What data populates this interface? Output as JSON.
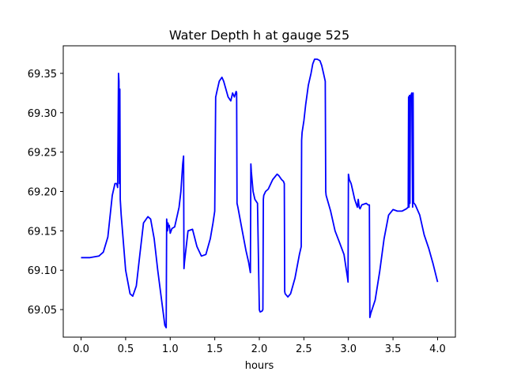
{
  "chart_data": {
    "type": "line",
    "title": "Water Depth h at gauge 525",
    "xlabel": "hours",
    "ylabel": "",
    "xlim": [
      -0.2,
      4.2
    ],
    "ylim": [
      69.015,
      69.385
    ],
    "xticks": [
      0.0,
      0.5,
      1.0,
      1.5,
      2.0,
      2.5,
      3.0,
      3.5,
      4.0
    ],
    "xtick_labels": [
      "0.0",
      "0.5",
      "1.0",
      "1.5",
      "2.0",
      "2.5",
      "3.0",
      "3.5",
      "4.0"
    ],
    "yticks": [
      69.05,
      69.1,
      69.15,
      69.2,
      69.25,
      69.3,
      69.35
    ],
    "ytick_labels": [
      "69.05",
      "69.10",
      "69.15",
      "69.20",
      "69.25",
      "69.30",
      "69.35"
    ],
    "grid": false,
    "color": "#0000ff",
    "series": [
      {
        "x": [
          0.0,
          0.1,
          0.2,
          0.25,
          0.3,
          0.35,
          0.38,
          0.4,
          0.41,
          0.42,
          0.425,
          0.43,
          0.435,
          0.44,
          0.45,
          0.5,
          0.55,
          0.58,
          0.62,
          0.66,
          0.7,
          0.75,
          0.78,
          0.82,
          0.86,
          0.9,
          0.94,
          0.955,
          0.96,
          0.97,
          0.975,
          0.98,
          0.99,
          1.0,
          1.02,
          1.05,
          1.08,
          1.1,
          1.12,
          1.14,
          1.15,
          1.155,
          1.16,
          1.2,
          1.25,
          1.3,
          1.35,
          1.4,
          1.45,
          1.48,
          1.5,
          1.51,
          1.515,
          1.52,
          1.55,
          1.58,
          1.6,
          1.65,
          1.68,
          1.7,
          1.72,
          1.74,
          1.745,
          1.75,
          1.76,
          1.8,
          1.85,
          1.88,
          1.9,
          1.905,
          1.91,
          1.93,
          1.95,
          1.98,
          2.0,
          2.005,
          2.01,
          2.03,
          2.04,
          2.045,
          2.05,
          2.07,
          2.1,
          2.15,
          2.2,
          2.22,
          2.25,
          2.27,
          2.28,
          2.285,
          2.29,
          2.32,
          2.35,
          2.4,
          2.45,
          2.47,
          2.475,
          2.48,
          2.5,
          2.52,
          2.55,
          2.58,
          2.6,
          2.62,
          2.65,
          2.68,
          2.7,
          2.72,
          2.74,
          2.745,
          2.75,
          2.8,
          2.85,
          2.9,
          2.95,
          2.99,
          2.995,
          3.0,
          3.01,
          3.03,
          3.05,
          3.07,
          3.1,
          3.11,
          3.12,
          3.13,
          3.15,
          3.2,
          3.22,
          3.235,
          3.24,
          3.25,
          3.3,
          3.35,
          3.4,
          3.45,
          3.5,
          3.55,
          3.6,
          3.65,
          3.67,
          3.675,
          3.68,
          3.685,
          3.69,
          3.695,
          3.7,
          3.71,
          3.72,
          3.725,
          3.73,
          3.75,
          3.8,
          3.85,
          3.9,
          3.95,
          4.0
        ],
        "y": [
          69.116,
          69.116,
          69.118,
          69.123,
          69.142,
          69.195,
          69.21,
          69.21,
          69.205,
          69.35,
          69.34,
          69.21,
          69.33,
          69.19,
          69.17,
          69.1,
          69.07,
          69.067,
          69.08,
          69.12,
          69.16,
          69.168,
          69.165,
          69.14,
          69.1,
          69.065,
          69.03,
          69.027,
          69.165,
          69.15,
          69.16,
          69.155,
          69.157,
          69.147,
          69.153,
          69.155,
          69.17,
          69.18,
          69.2,
          69.235,
          69.245,
          69.102,
          69.11,
          69.15,
          69.152,
          69.13,
          69.118,
          69.12,
          69.14,
          69.16,
          69.175,
          69.32,
          69.322,
          69.325,
          69.34,
          69.345,
          69.34,
          69.32,
          69.315,
          69.325,
          69.32,
          69.327,
          69.325,
          69.185,
          69.18,
          69.155,
          69.125,
          69.11,
          69.097,
          69.235,
          69.225,
          69.2,
          69.19,
          69.185,
          69.05,
          69.048,
          69.047,
          69.048,
          69.05,
          69.19,
          69.195,
          69.2,
          69.203,
          69.215,
          69.222,
          69.22,
          69.215,
          69.213,
          69.21,
          69.073,
          69.07,
          69.066,
          69.07,
          69.09,
          69.12,
          69.13,
          69.265,
          69.275,
          69.29,
          69.31,
          69.335,
          69.35,
          69.362,
          69.368,
          69.368,
          69.366,
          69.36,
          69.35,
          69.34,
          69.2,
          69.195,
          69.175,
          69.15,
          69.135,
          69.12,
          69.09,
          69.085,
          69.222,
          69.215,
          69.21,
          69.2,
          69.19,
          69.18,
          69.19,
          69.18,
          69.178,
          69.183,
          69.185,
          69.183,
          69.183,
          69.04,
          69.045,
          69.062,
          69.098,
          69.14,
          69.17,
          69.177,
          69.175,
          69.175,
          69.178,
          69.18,
          69.32,
          69.18,
          69.322,
          69.185,
          69.32,
          69.322,
          69.325,
          69.18,
          69.325,
          69.186,
          69.183,
          69.17,
          69.145,
          69.128,
          69.108,
          69.085
        ]
      }
    ]
  }
}
